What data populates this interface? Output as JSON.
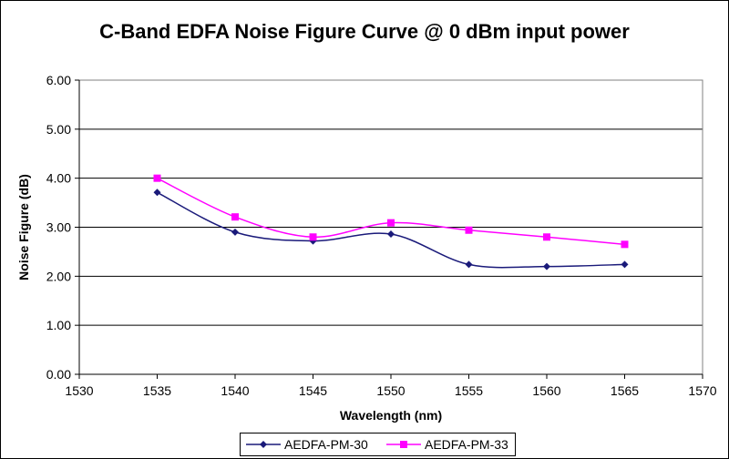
{
  "chart_data": {
    "type": "line",
    "title": "C-Band EDFA Noise Figure Curve @ 0 dBm input power",
    "xlabel": "Wavelength (nm)",
    "ylabel": "Noise Figure (dB)",
    "xlim": [
      1530,
      1570
    ],
    "ylim": [
      0,
      6
    ],
    "x_ticks": [
      "1530",
      "1535",
      "1540",
      "1545",
      "1550",
      "1555",
      "1560",
      "1565",
      "1570"
    ],
    "y_ticks": [
      "0.00",
      "1.00",
      "2.00",
      "3.00",
      "4.00",
      "5.00",
      "6.00"
    ],
    "grid": "horizontal",
    "legend_position": "bottom",
    "smoothed": true,
    "x": [
      1535,
      1540,
      1545,
      1550,
      1555,
      1560,
      1565
    ],
    "series": [
      {
        "name": "AEDFA-PM-30",
        "color": "#1a1a7a",
        "marker": "diamond",
        "values": [
          3.71,
          2.9,
          2.72,
          2.86,
          2.24,
          2.2,
          2.24
        ]
      },
      {
        "name": "AEDFA-PM-33",
        "color": "#ff00ff",
        "marker": "square",
        "values": [
          4.0,
          3.21,
          2.8,
          3.09,
          2.94,
          2.8,
          2.65
        ]
      }
    ]
  }
}
